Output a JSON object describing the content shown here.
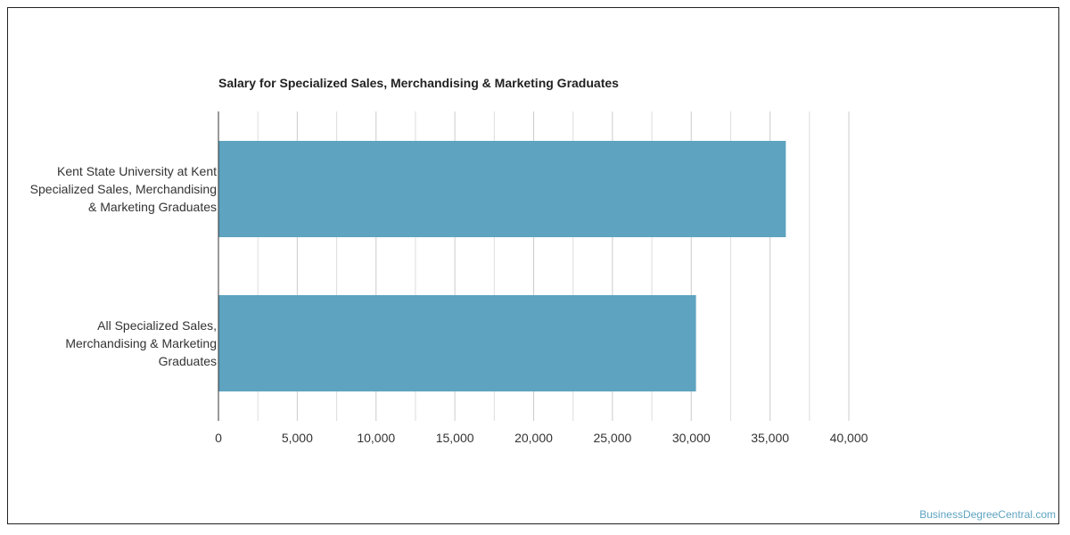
{
  "chart_data": {
    "type": "bar",
    "orientation": "horizontal",
    "title": "Salary for Specialized Sales, Merchandising & Marketing Graduates",
    "categories": [
      "Kent State University at Kent Specialized Sales, Merchandising & Marketing Graduates",
      "All Specialized Sales, Merchandising & Marketing Graduates"
    ],
    "category_label_lines": [
      [
        "Kent State University at Kent",
        "Specialized Sales, Merchandising",
        "& Marketing Graduates"
      ],
      [
        "All Specialized Sales,",
        "Merchandising & Marketing",
        "Graduates"
      ]
    ],
    "values": [
      36000,
      30300
    ],
    "xlim": [
      0,
      40000
    ],
    "x_ticks": [
      0,
      5000,
      10000,
      15000,
      20000,
      25000,
      30000,
      35000,
      40000
    ],
    "x_tick_labels": [
      "0",
      "5,000",
      "10,000",
      "15,000",
      "20,000",
      "25,000",
      "30,000",
      "35,000",
      "40,000"
    ],
    "grid": true,
    "bar_color": "#5ea3c0",
    "grid_color": "#dddddd"
  },
  "footer": {
    "source_text": "BusinessDegreeCentral.com",
    "source_color": "#5ea3c0"
  }
}
